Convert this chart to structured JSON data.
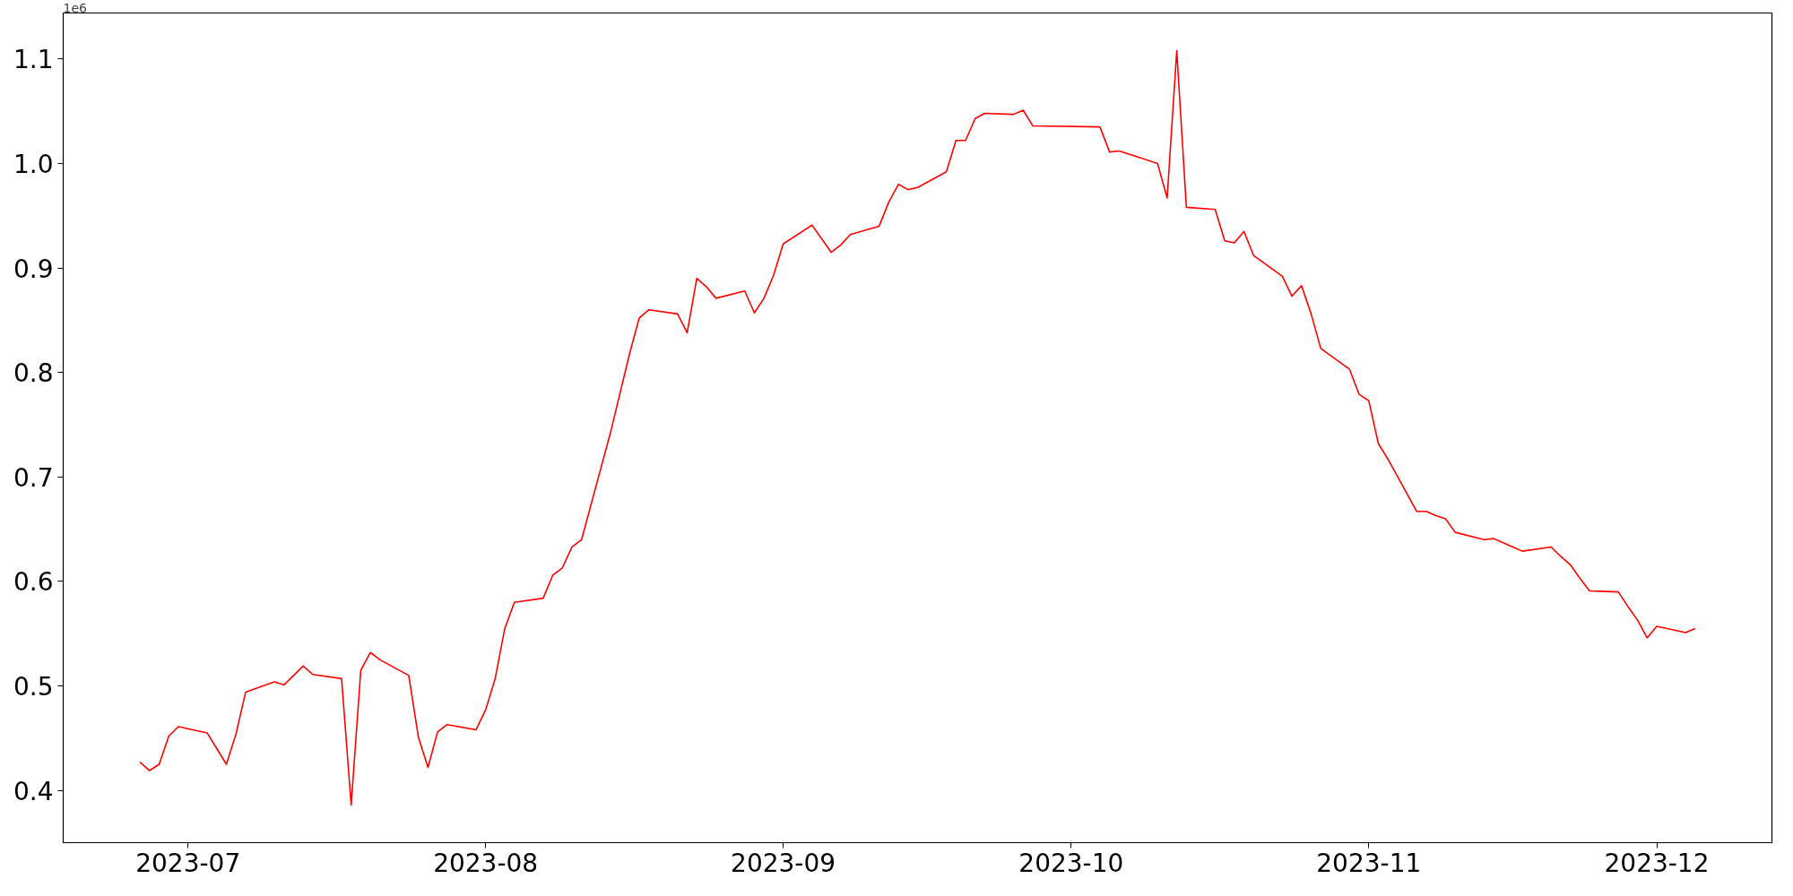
{
  "chart_data": {
    "type": "line",
    "x": [
      "2023-06-26",
      "2023-06-27",
      "2023-06-28",
      "2023-06-29",
      "2023-06-30",
      "2023-07-03",
      "2023-07-04",
      "2023-07-05",
      "2023-07-06",
      "2023-07-07",
      "2023-07-10",
      "2023-07-11",
      "2023-07-12",
      "2023-07-13",
      "2023-07-14",
      "2023-07-17",
      "2023-07-18",
      "2023-07-19",
      "2023-07-20",
      "2023-07-21",
      "2023-07-24",
      "2023-07-25",
      "2023-07-26",
      "2023-07-27",
      "2023-07-28",
      "2023-07-31",
      "2023-08-01",
      "2023-08-02",
      "2023-08-03",
      "2023-08-04",
      "2023-08-07",
      "2023-08-08",
      "2023-08-09",
      "2023-08-10",
      "2023-08-11",
      "2023-08-14",
      "2023-08-16",
      "2023-08-17",
      "2023-08-18",
      "2023-08-21",
      "2023-08-22",
      "2023-08-23",
      "2023-08-24",
      "2023-08-25",
      "2023-08-28",
      "2023-08-29",
      "2023-08-30",
      "2023-08-31",
      "2023-09-01",
      "2023-09-04",
      "2023-09-06",
      "2023-09-07",
      "2023-09-08",
      "2023-09-11",
      "2023-09-12",
      "2023-09-13",
      "2023-09-14",
      "2023-09-15",
      "2023-09-18",
      "2023-09-19",
      "2023-09-20",
      "2023-09-21",
      "2023-09-22",
      "2023-09-25",
      "2023-09-26",
      "2023-09-27",
      "2023-10-04",
      "2023-10-05",
      "2023-10-06",
      "2023-10-10",
      "2023-10-11",
      "2023-10-12",
      "2023-10-13",
      "2023-10-16",
      "2023-10-17",
      "2023-10-18",
      "2023-10-19",
      "2023-10-20",
      "2023-10-23",
      "2023-10-24",
      "2023-10-25",
      "2023-10-26",
      "2023-10-27",
      "2023-10-30",
      "2023-10-31",
      "2023-11-01",
      "2023-11-02",
      "2023-11-03",
      "2023-11-06",
      "2023-11-07",
      "2023-11-08",
      "2023-11-09",
      "2023-11-10",
      "2023-11-13",
      "2023-11-14",
      "2023-11-15",
      "2023-11-16",
      "2023-11-17",
      "2023-11-20",
      "2023-11-21",
      "2023-11-22",
      "2023-11-23",
      "2023-11-24",
      "2023-11-27",
      "2023-11-28",
      "2023-11-29",
      "2023-11-30",
      "2023-12-01",
      "2023-12-04",
      "2023-12-05"
    ],
    "series": [
      {
        "color": "#ff0000",
        "values": [
          0.427,
          0.419,
          0.425,
          0.452,
          0.461,
          0.455,
          0.44,
          0.425,
          0.454,
          0.494,
          0.504,
          0.501,
          0.51,
          0.519,
          0.511,
          0.507,
          0.386,
          0.515,
          0.532,
          0.525,
          0.51,
          0.451,
          0.422,
          0.456,
          0.463,
          0.458,
          0.477,
          0.507,
          0.555,
          0.58,
          0.584,
          0.606,
          0.613,
          0.633,
          0.64,
          0.742,
          0.818,
          0.852,
          0.86,
          0.856,
          0.838,
          0.89,
          0.882,
          0.871,
          0.878,
          0.857,
          0.871,
          0.893,
          0.923,
          0.941,
          0.915,
          0.922,
          0.932,
          0.94,
          0.963,
          0.98,
          0.975,
          0.977,
          0.992,
          1.022,
          1.022,
          1.043,
          1.048,
          1.047,
          1.051,
          1.036,
          1.035,
          1.011,
          1.012,
          1.0,
          0.967,
          1.108,
          0.958,
          0.956,
          0.926,
          0.924,
          0.935,
          0.912,
          0.892,
          0.873,
          0.883,
          0.856,
          0.823,
          0.803,
          0.779,
          0.773,
          0.732,
          0.717,
          0.667,
          0.667,
          0.663,
          0.66,
          0.647,
          0.64,
          0.641,
          0.637,
          0.633,
          0.629,
          0.633,
          0.624,
          0.616,
          0.603,
          0.591,
          0.59,
          0.576,
          0.563,
          0.546,
          0.557,
          0.551,
          0.555
        ]
      }
    ],
    "xlim": [
      "2023-06-18",
      "2023-12-13"
    ],
    "xticks": [
      {
        "value": "2023-07-01",
        "label": "2023-07"
      },
      {
        "value": "2023-08-01",
        "label": "2023-08"
      },
      {
        "value": "2023-09-01",
        "label": "2023-09"
      },
      {
        "value": "2023-10-01",
        "label": "2023-10"
      },
      {
        "value": "2023-11-01",
        "label": "2023-11"
      },
      {
        "value": "2023-12-01",
        "label": "2023-12"
      }
    ],
    "ylim": [
      0.35,
      1.144
    ],
    "yticks": [
      0.4,
      0.5,
      0.6,
      0.7,
      0.8,
      0.9,
      {
        "value": 1.0,
        "label": "1.0"
      },
      1.1
    ],
    "annotations": [
      "1e6"
    ],
    "grid": false,
    "marker": "none",
    "line_style": "solid"
  }
}
